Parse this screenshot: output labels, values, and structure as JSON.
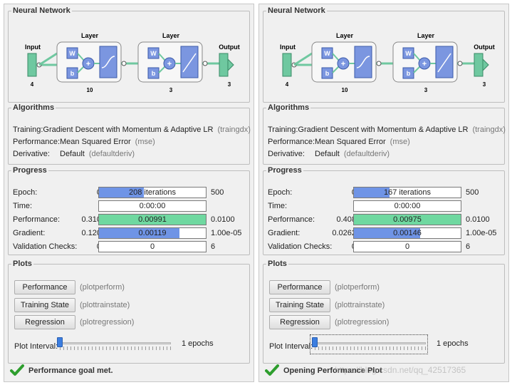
{
  "panels": [
    {
      "nn": {
        "title": "Neural Network",
        "input_label": "Input",
        "input_size": "4",
        "layer1_label": "Layer",
        "layer1_size": "10",
        "layer2_label": "Layer",
        "layer2_size": "3",
        "output_label": "Output",
        "output_size": "3",
        "w": "W",
        "b": "b"
      },
      "algorithms": {
        "title": "Algorithms",
        "training_key": "Training:",
        "training_val": "Gradient Descent with Momentum & Adaptive LR",
        "training_param": "(traingdx)",
        "performance_key": "Performance:",
        "performance_val": "Mean Squared Error",
        "performance_param": "(mse)",
        "derivative_key": "Derivative:",
        "derivative_val": "Default",
        "derivative_param": "(defaultderiv)"
      },
      "progress": {
        "title": "Progress",
        "epoch": {
          "label": "Epoch:",
          "min": "0",
          "value": "208 iterations",
          "max": "500",
          "fill": 0.42
        },
        "time": {
          "label": "Time:",
          "value": "0:00:00"
        },
        "performance": {
          "label": "Performance:",
          "min": "0.310",
          "value": "0.00991",
          "max": "0.0100",
          "fill": 1.0
        },
        "gradient": {
          "label": "Gradient:",
          "min": "0.120",
          "value": "0.00119",
          "max": "1.00e-05",
          "fill": 0.75
        },
        "validation": {
          "label": "Validation Checks:",
          "min": "0",
          "value": "0",
          "max": "6",
          "fill": 0
        }
      },
      "plots": {
        "title": "Plots",
        "btn1": "Performance",
        "desc1": "(plotperform)",
        "btn2": "Training State",
        "desc2": "(plottrainstate)",
        "btn3": "Regression",
        "desc3": "(plotregression)",
        "interval_label": "Plot Interval:",
        "interval_value": "1 epochs",
        "interval_level": 0.0
      },
      "status": "Performance goal met."
    },
    {
      "nn": {
        "title": "Neural Network",
        "input_label": "Input",
        "input_size": "4",
        "layer1_label": "Layer",
        "layer1_size": "10",
        "layer2_label": "Layer",
        "layer2_size": "3",
        "output_label": "Output",
        "output_size": "3",
        "w": "W",
        "b": "b"
      },
      "algorithms": {
        "title": "Algorithms",
        "training_key": "Training:",
        "training_val": "Gradient Descent with Momentum & Adaptive LR",
        "training_param": "(traingdx)",
        "performance_key": "Performance:",
        "performance_val": "Mean Squared Error",
        "performance_param": "(mse)",
        "derivative_key": "Derivative:",
        "derivative_val": "Default",
        "derivative_param": "(defaultderiv)"
      },
      "progress": {
        "title": "Progress",
        "epoch": {
          "label": "Epoch:",
          "min": "0",
          "value": "167 iterations",
          "max": "500",
          "fill": 0.33
        },
        "time": {
          "label": "Time:",
          "value": "0:00:00"
        },
        "performance": {
          "label": "Performance:",
          "min": "0.408",
          "value": "0.00975",
          "max": "0.0100",
          "fill": 1.0
        },
        "gradient": {
          "label": "Gradient:",
          "min": "0.0262",
          "value": "0.00146",
          "max": "1.00e-05",
          "fill": 0.62
        },
        "validation": {
          "label": "Validation Checks:",
          "min": "0",
          "value": "0",
          "max": "6",
          "fill": 0
        }
      },
      "plots": {
        "title": "Plots",
        "btn1": "Performance",
        "desc1": "(plotperform)",
        "btn2": "Training State",
        "desc2": "(plottrainstate)",
        "btn3": "Regression",
        "desc3": "(plotregression)",
        "interval_label": "Plot Interval:",
        "interval_value": "1 epochs",
        "interval_level": 0.0
      },
      "status": "Opening Performance Plot"
    }
  ],
  "watermark": "https://blog.csdn.net/qq_42517365",
  "colors": {
    "progress_blue": "#6f94e6",
    "progress_green": "#6fd8a0",
    "node_teal": "#6fc8a0",
    "check_green": "#2e9e2e"
  },
  "icons": {
    "status": "check-icon",
    "transfer": "sigmoid-icon",
    "sum": "sum-icon"
  }
}
